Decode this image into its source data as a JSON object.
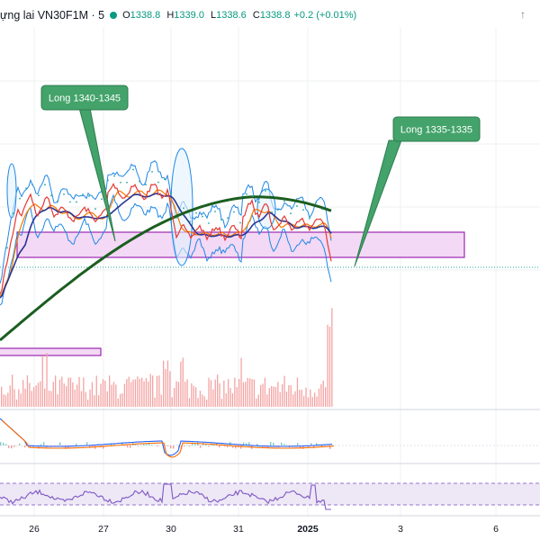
{
  "header": {
    "title": "ựng lai VN30F1M · 5",
    "status_color": "#089981",
    "ohlc": [
      {
        "key": "O",
        "value": "1338.8"
      },
      {
        "key": "H",
        "value": "1339.0"
      },
      {
        "key": "L",
        "value": "1338.6"
      },
      {
        "key": "C",
        "value": "1338.8"
      }
    ],
    "change": "+0.2 (+0.01%)",
    "icon": "up-arrow-icon"
  },
  "annotations": [
    {
      "text": "Long 1340-1345"
    },
    {
      "text": "Long 1335-1335"
    }
  ],
  "chart_data": {
    "type": "line",
    "symbol": "VN30F1M",
    "interval": "5",
    "x_ticks": [
      "26",
      "27",
      "30",
      "31",
      "2025",
      "3",
      "6"
    ],
    "long_zone": [
      1335,
      1340
    ],
    "last_price": 1338.8,
    "colors": {
      "price": "#e53935",
      "ma_dark_green": "#1b5e20",
      "ma_blue": "#283593",
      "ma_orange": "#f57c00",
      "bollinger": "#1e88e5",
      "zone_fill": "#f3d9f5",
      "zone_border": "#9c27b0",
      "callout": "#43a36a",
      "volume": "#f4a3a3",
      "rsi_band": "#ede7f6"
    }
  }
}
